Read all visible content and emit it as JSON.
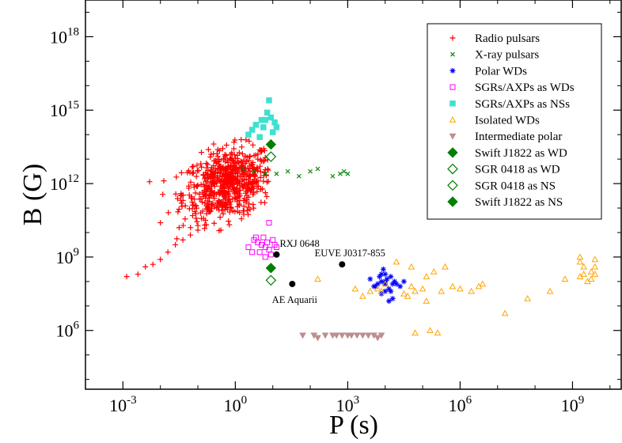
{
  "chart_data": {
    "type": "scatter",
    "xlabel": "P (s)",
    "ylabel": "B (G)",
    "x_scale": "log",
    "y_scale": "log",
    "xlim_log10": [
      -4,
      10.3
    ],
    "ylim_log10": [
      3.6,
      19.5
    ],
    "x_ticks": [
      {
        "base": "10",
        "exp": "-3",
        "log": -3
      },
      {
        "base": "10",
        "exp": "0",
        "log": 0
      },
      {
        "base": "10",
        "exp": "3",
        "log": 3
      },
      {
        "base": "10",
        "exp": "6",
        "log": 6
      },
      {
        "base": "10",
        "exp": "9",
        "log": 9
      }
    ],
    "y_ticks": [
      {
        "base": "10",
        "exp": "6",
        "log": 6
      },
      {
        "base": "10",
        "exp": "9",
        "log": 9
      },
      {
        "base": "10",
        "exp": "12",
        "log": 12
      },
      {
        "base": "10",
        "exp": "15",
        "log": 15
      },
      {
        "base": "10",
        "exp": "18",
        "log": 18
      }
    ],
    "legend_position": "top-right",
    "series": [
      {
        "name": "Radio pulsars",
        "marker": "plus",
        "color": "#ff0000",
        "points_log10": [
          [
            -2.9,
            8.2
          ],
          [
            -2.6,
            8.3
          ],
          [
            -2.4,
            8.6
          ],
          [
            -2.2,
            8.7
          ],
          [
            -2.0,
            8.9
          ],
          [
            -1.8,
            9.2
          ],
          [
            -1.6,
            9.5
          ],
          [
            -1.4,
            9.7
          ],
          [
            -1.2,
            9.9
          ],
          [
            -1.0,
            10.1
          ],
          [
            -0.8,
            10.5
          ],
          [
            -0.7,
            10.9
          ],
          [
            -0.6,
            11.2
          ],
          [
            -0.5,
            11.0
          ],
          [
            -0.4,
            11.6
          ],
          [
            -0.3,
            11.8
          ],
          [
            -0.2,
            12.0
          ],
          [
            -0.1,
            12.2
          ],
          [
            0.0,
            12.4
          ],
          [
            0.1,
            12.6
          ],
          [
            0.2,
            12.7
          ],
          [
            0.3,
            12.9
          ],
          [
            0.4,
            12.3
          ],
          [
            0.5,
            12.6
          ],
          [
            0.6,
            13.0
          ],
          [
            0.7,
            13.3
          ],
          [
            -2.0,
            10.4
          ],
          [
            -1.5,
            10.2
          ]
        ],
        "cluster": {
          "center_log10": [
            -0.2,
            12.0
          ],
          "spread_log10": [
            0.6,
            0.7
          ],
          "count": 650
        }
      },
      {
        "name": "X-ray pulsars",
        "marker": "x",
        "color": "#008000",
        "points_log10": [
          [
            0.2,
            12.6
          ],
          [
            0.5,
            12.5
          ],
          [
            0.8,
            12.4
          ],
          [
            1.1,
            12.4
          ],
          [
            1.4,
            12.5
          ],
          [
            1.7,
            12.3
          ],
          [
            2.0,
            12.5
          ],
          [
            2.2,
            12.6
          ],
          [
            2.6,
            12.3
          ],
          [
            2.8,
            12.4
          ],
          [
            2.9,
            12.5
          ],
          [
            3.0,
            12.4
          ]
        ]
      },
      {
        "name": "Polar WDs",
        "marker": "star",
        "color": "#0000ff",
        "points_log10": [
          [
            3.6,
            8.1
          ],
          [
            3.7,
            7.8
          ],
          [
            3.8,
            7.9
          ],
          [
            3.9,
            8.0
          ],
          [
            3.9,
            8.3
          ],
          [
            3.95,
            8.5
          ],
          [
            4.0,
            7.6
          ],
          [
            4.0,
            7.9
          ],
          [
            4.05,
            8.1
          ],
          [
            4.1,
            7.7
          ],
          [
            4.15,
            7.6
          ],
          [
            4.2,
            7.3
          ],
          [
            4.25,
            8.0
          ],
          [
            4.3,
            7.9
          ],
          [
            3.85,
            8.2
          ],
          [
            3.9,
            7.5
          ],
          [
            4.0,
            8.3
          ],
          [
            4.15,
            8.2
          ],
          [
            4.4,
            7.8
          ],
          [
            4.5,
            8.0
          ],
          [
            4.1,
            7.2
          ],
          [
            3.75,
            7.8
          ],
          [
            4.0,
            8.0
          ],
          [
            4.2,
            7.9
          ]
        ]
      },
      {
        "name": "SGRs/AXPs as WDs",
        "marker": "square-open",
        "color": "#ff00ff",
        "points_log10": [
          [
            0.35,
            9.4
          ],
          [
            0.45,
            9.2
          ],
          [
            0.5,
            9.7
          ],
          [
            0.6,
            9.6
          ],
          [
            0.65,
            9.2
          ],
          [
            0.75,
            9.8
          ],
          [
            0.8,
            9.4
          ],
          [
            0.85,
            9.6
          ],
          [
            0.9,
            9.3
          ],
          [
            0.95,
            9.1
          ],
          [
            1.0,
            9.7
          ],
          [
            1.05,
            9.5
          ],
          [
            0.9,
            10.4
          ],
          [
            0.55,
            9.8
          ],
          [
            1.1,
            9.4
          ],
          [
            0.8,
            9.0
          ],
          [
            0.7,
            9.5
          ]
        ]
      },
      {
        "name": "SGRs/AXPs as NSs",
        "marker": "square-filled",
        "color": "#40e0d0",
        "points_log10": [
          [
            0.35,
            14.0
          ],
          [
            0.45,
            14.2
          ],
          [
            0.55,
            14.4
          ],
          [
            0.65,
            13.9
          ],
          [
            0.75,
            14.3
          ],
          [
            0.8,
            14.6
          ],
          [
            0.85,
            14.9
          ],
          [
            0.9,
            15.4
          ],
          [
            0.95,
            14.7
          ],
          [
            1.0,
            14.1
          ],
          [
            1.05,
            14.5
          ],
          [
            1.1,
            14.3
          ],
          [
            0.7,
            14.6
          ]
        ]
      },
      {
        "name": "Isolated WDs",
        "marker": "triangle-up-open",
        "color": "#ffa500",
        "points_log10": [
          [
            2.2,
            8.1
          ],
          [
            3.2,
            7.7
          ],
          [
            3.4,
            7.4
          ],
          [
            3.6,
            7.6
          ],
          [
            3.8,
            7.7
          ],
          [
            4.0,
            7.9
          ],
          [
            4.3,
            8.8
          ],
          [
            4.5,
            7.5
          ],
          [
            4.6,
            7.4
          ],
          [
            4.8,
            7.6
          ],
          [
            5.0,
            7.7
          ],
          [
            5.1,
            8.2
          ],
          [
            5.3,
            8.4
          ],
          [
            5.5,
            7.6
          ],
          [
            5.8,
            7.8
          ],
          [
            6.0,
            7.7
          ],
          [
            6.3,
            7.6
          ],
          [
            6.5,
            7.8
          ],
          [
            6.6,
            7.9
          ],
          [
            7.8,
            7.3
          ],
          [
            8.4,
            7.6
          ],
          [
            8.8,
            8.1
          ],
          [
            9.2,
            8.2
          ],
          [
            9.3,
            8.6
          ],
          [
            9.4,
            8.0
          ],
          [
            9.5,
            8.4
          ],
          [
            9.6,
            8.9
          ],
          [
            4.8,
            5.9
          ],
          [
            5.2,
            6.0
          ],
          [
            5.4,
            5.9
          ],
          [
            9.2,
            9.0
          ],
          [
            9.3,
            8.3
          ],
          [
            9.5,
            8.1
          ],
          [
            9.6,
            8.6
          ],
          [
            7.2,
            6.7
          ],
          [
            4.7,
            8.6
          ],
          [
            5.6,
            8.6
          ],
          [
            9.2,
            8.8
          ],
          [
            9.6,
            8.3
          ],
          [
            3.9,
            7.6
          ],
          [
            4.7,
            7.8
          ],
          [
            5.1,
            7.2
          ]
        ]
      },
      {
        "name": "Intermediate polar",
        "marker": "triangle-down-filled",
        "color": "#bc8f8f",
        "points_log10": [
          [
            1.8,
            5.8
          ],
          [
            2.1,
            5.8
          ],
          [
            2.4,
            5.8
          ],
          [
            2.6,
            5.8
          ],
          [
            2.7,
            5.8
          ],
          [
            2.85,
            5.8
          ],
          [
            3.0,
            5.8
          ],
          [
            3.1,
            5.8
          ],
          [
            3.25,
            5.8
          ],
          [
            3.4,
            5.8
          ],
          [
            3.55,
            5.8
          ],
          [
            3.7,
            5.8
          ],
          [
            3.9,
            5.8
          ],
          [
            2.2,
            5.7
          ],
          [
            3.8,
            5.7
          ]
        ]
      },
      {
        "name": "Swift J1822 as WD",
        "marker": "diamond-filled",
        "color": "#008000",
        "points_log10": [
          [
            0.95,
            8.55
          ]
        ]
      },
      {
        "name": "SGR 0418 as WD",
        "marker": "diamond-open",
        "color": "#008000",
        "points_log10": [
          [
            0.95,
            8.05
          ]
        ]
      },
      {
        "name": "SGR 0418 as NS",
        "marker": "diamond-open",
        "color": "#008000",
        "points_log10": [
          [
            0.95,
            13.1
          ]
        ]
      },
      {
        "name": "Swift J1822 as NS",
        "marker": "diamond-filled",
        "color": "#008000",
        "points_log10": [
          [
            0.95,
            13.6
          ]
        ]
      }
    ],
    "annotations": [
      {
        "text": "RXJ 0648",
        "point_log10": [
          1.1,
          9.1
        ],
        "label_offset": "above-right"
      },
      {
        "text": "EUVE J0317-855",
        "point_log10": [
          2.85,
          8.7
        ],
        "label_offset": "above-left"
      },
      {
        "text": "AE Aquarii",
        "point_log10": [
          1.52,
          7.9
        ],
        "label_offset": "below"
      }
    ]
  }
}
